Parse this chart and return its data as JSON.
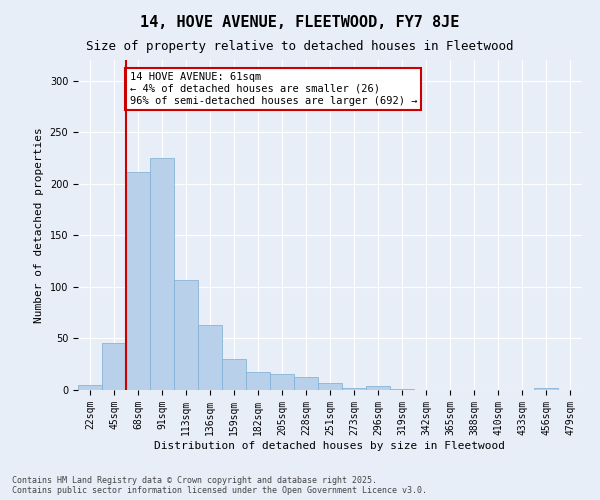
{
  "title": "14, HOVE AVENUE, FLEETWOOD, FY7 8JE",
  "subtitle": "Size of property relative to detached houses in Fleetwood",
  "xlabel": "Distribution of detached houses by size in Fleetwood",
  "ylabel": "Number of detached properties",
  "footer_line1": "Contains HM Land Registry data © Crown copyright and database right 2025.",
  "footer_line2": "Contains public sector information licensed under the Open Government Licence v3.0.",
  "bins": [
    "22sqm",
    "45sqm",
    "68sqm",
    "91sqm",
    "113sqm",
    "136sqm",
    "159sqm",
    "182sqm",
    "205sqm",
    "228sqm",
    "251sqm",
    "273sqm",
    "296sqm",
    "319sqm",
    "342sqm",
    "365sqm",
    "388sqm",
    "410sqm",
    "433sqm",
    "456sqm",
    "479sqm"
  ],
  "bar_values": [
    5,
    46,
    211,
    225,
    107,
    63,
    30,
    17,
    16,
    13,
    7,
    2,
    4,
    1,
    0,
    0,
    0,
    0,
    0,
    2,
    0
  ],
  "bar_color": "#b8d0ea",
  "bar_edge_color": "#7aadd4",
  "vline_color": "#cc0000",
  "annotation_text": "14 HOVE AVENUE: 61sqm\n← 4% of detached houses are smaller (26)\n96% of semi-detached houses are larger (692) →",
  "annotation_box_color": "#cc0000",
  "annotation_facecolor": "white",
  "ylim": [
    0,
    320
  ],
  "yticks": [
    0,
    50,
    100,
    150,
    200,
    250,
    300
  ],
  "background_color": "#e8eef8",
  "plot_bg_color": "#e8eef8",
  "grid_color": "white",
  "title_fontsize": 11,
  "subtitle_fontsize": 9,
  "tick_fontsize": 7,
  "ylabel_fontsize": 8,
  "xlabel_fontsize": 8,
  "footer_fontsize": 6,
  "annotation_fontsize": 7.5
}
